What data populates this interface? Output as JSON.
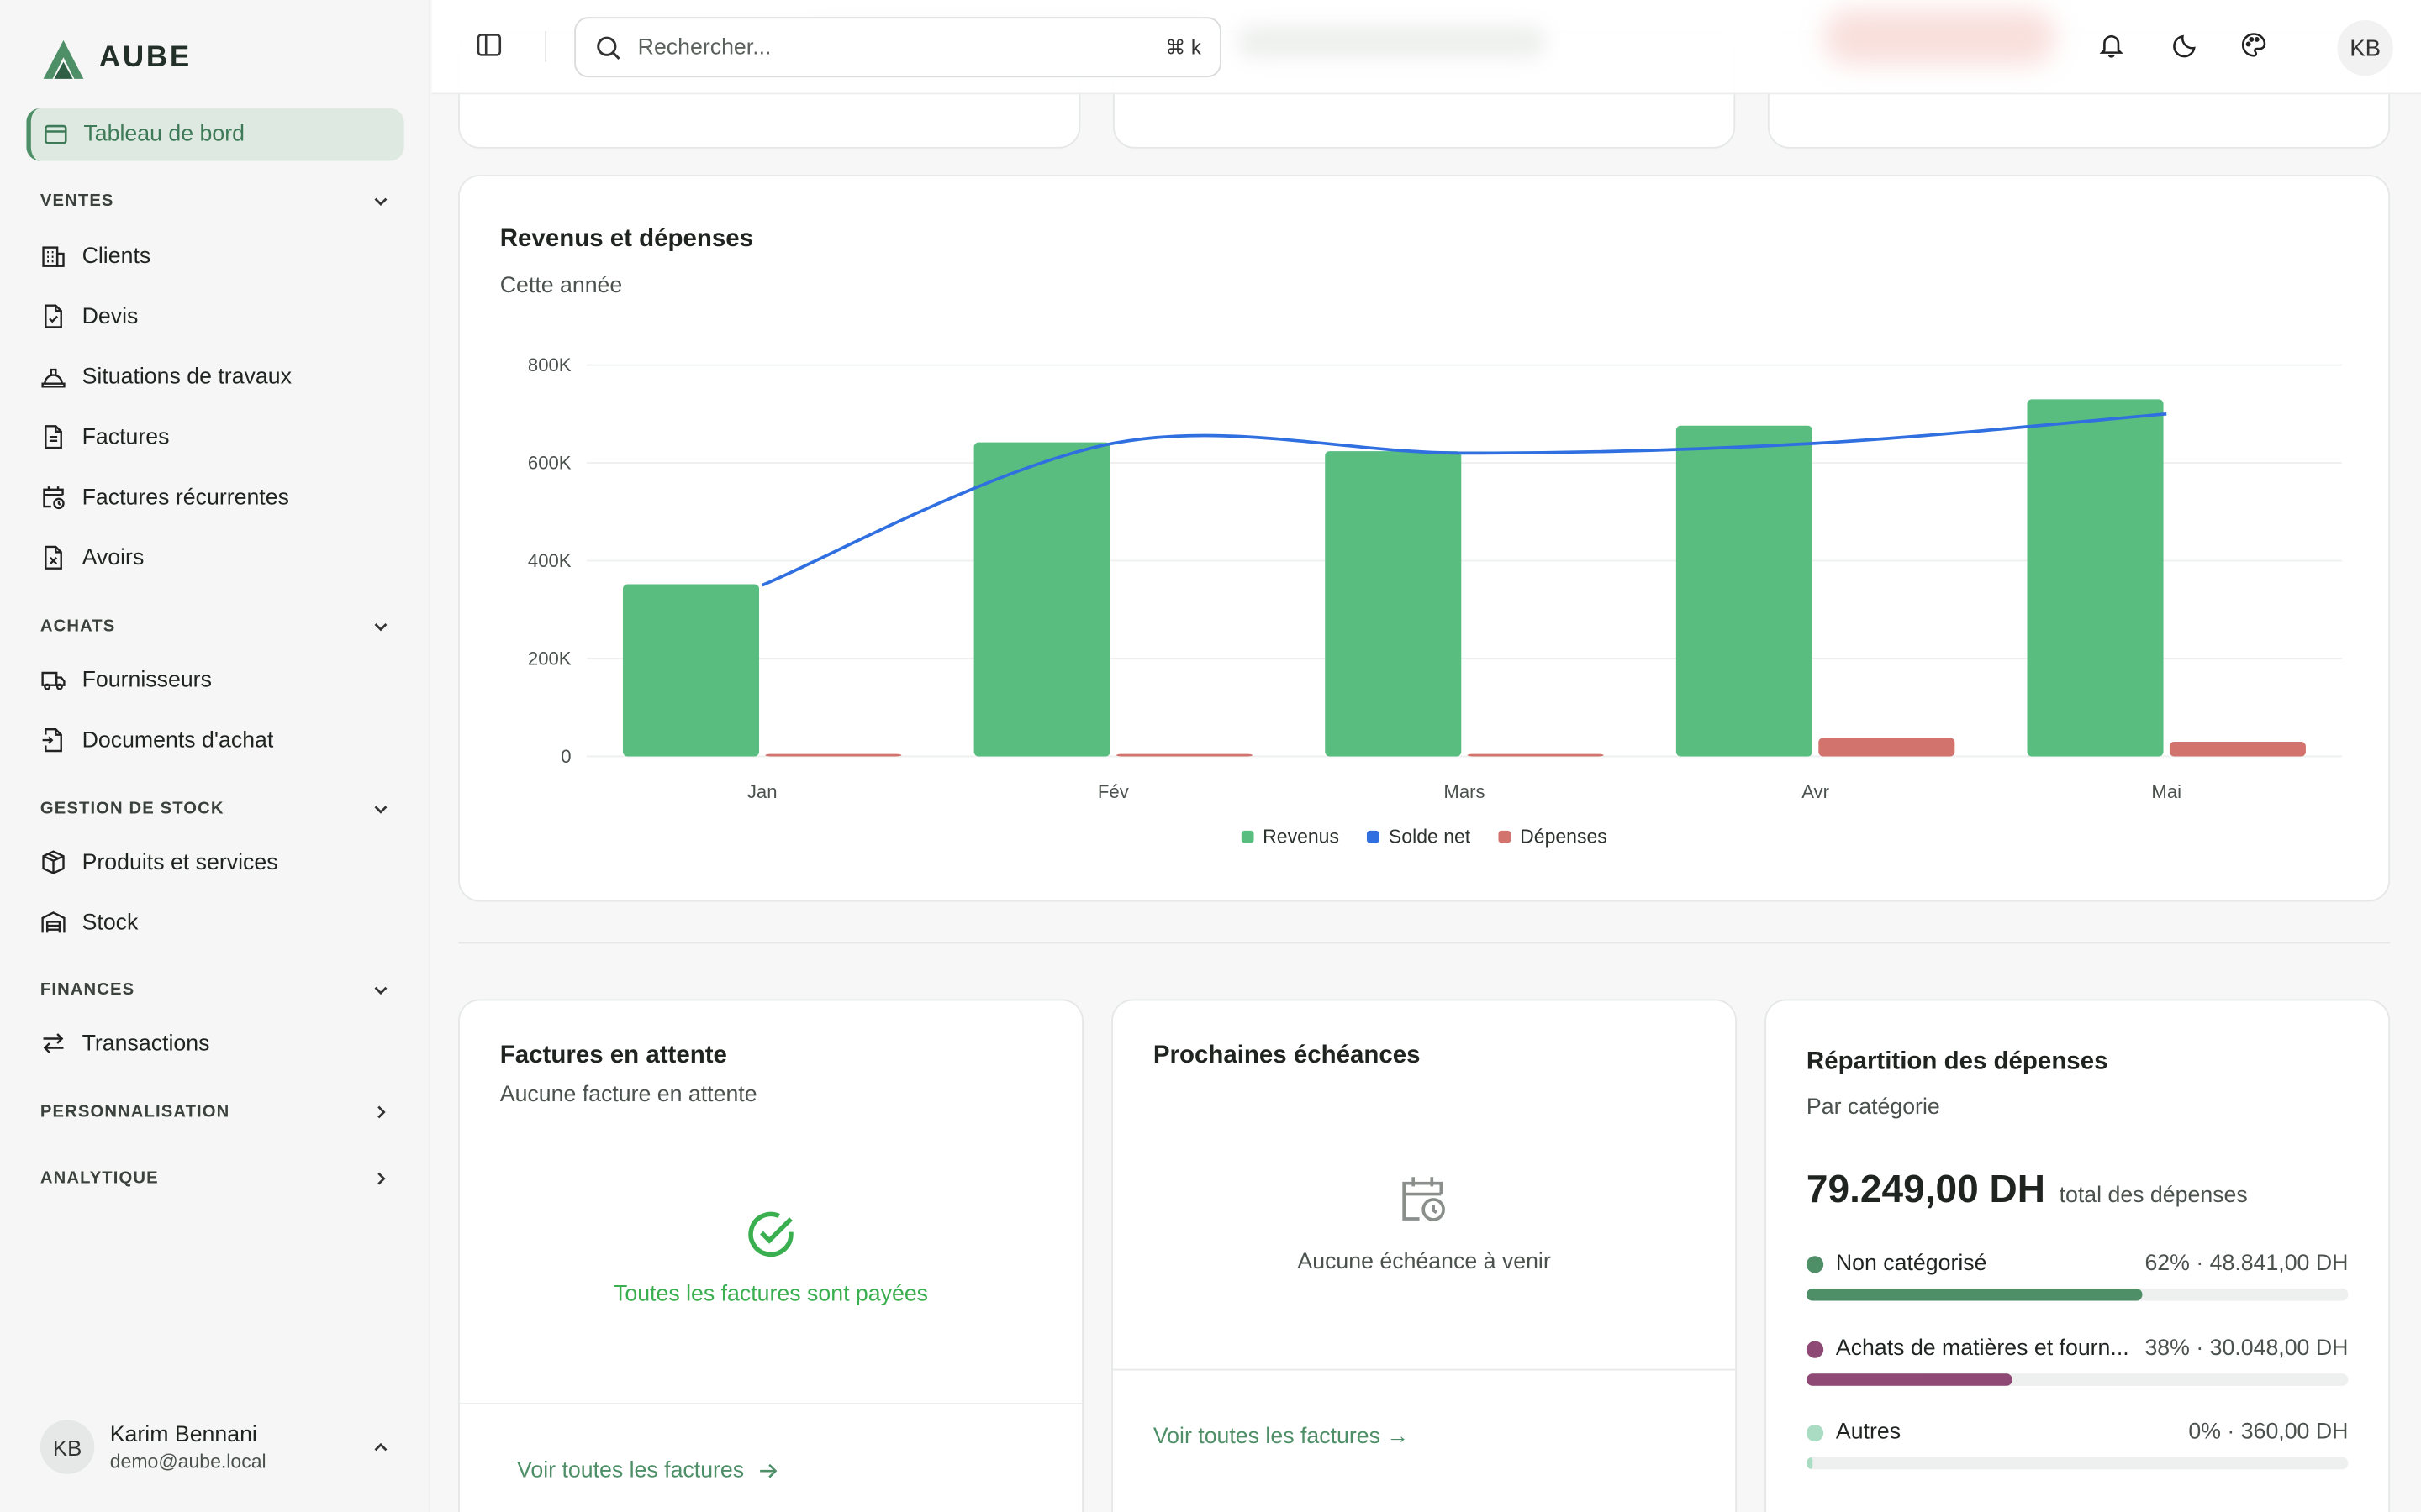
{
  "app": {
    "logo_text": "AUBE"
  },
  "sidebar": {
    "active_item": {
      "label": "Tableau de bord"
    },
    "sections": {
      "ventes": "VENTES",
      "achats": "ACHATS",
      "stock": "GESTION DE STOCK",
      "finances": "FINANCES",
      "perso": "PERSONNALISATION",
      "analytique": "ANALYTIQUE"
    },
    "items": {
      "clients": "Clients",
      "devis": "Devis",
      "situations": "Situations de travaux",
      "factures": "Factures",
      "factures_rec": "Factures récurrentes",
      "avoirs": "Avoirs",
      "fournisseurs": "Fournisseurs",
      "docs_achat": "Documents d'achat",
      "produits": "Produits et services",
      "stock": "Stock",
      "transactions": "Transactions"
    },
    "user": {
      "initials": "KB",
      "name": "Karim Bennani",
      "email": "demo@aube.local"
    }
  },
  "topbar": {
    "search_placeholder": "Rechercher...",
    "shortcut": "⌘ k",
    "avatar_initials": "KB"
  },
  "revenue_card": {
    "title": "Revenus et dépenses",
    "subtitle": "Cette année"
  },
  "chart_data": {
    "type": "bar",
    "categories": [
      "Jan",
      "Fév",
      "Mars",
      "Avr",
      "Mai"
    ],
    "ylim": [
      0,
      800000
    ],
    "yticks": [
      0,
      200000,
      400000,
      600000,
      800000
    ],
    "ytick_labels": [
      "0",
      "200K",
      "400K",
      "600K",
      "800K"
    ],
    "grid": true,
    "legend_placement": "bottom-center",
    "series": [
      {
        "name": "Revenus",
        "type": "bar",
        "color": "#58bd7f",
        "values": [
          352000,
          642000,
          624000,
          676000,
          730000
        ]
      },
      {
        "name": "Solde net",
        "type": "line",
        "color": "#2f6fe0",
        "values": [
          350000,
          640000,
          620000,
          640000,
          700000
        ]
      },
      {
        "name": "Dépenses",
        "type": "bar",
        "color": "#d2736d",
        "values": [
          2000,
          2000,
          4000,
          38000,
          30000
        ]
      }
    ]
  },
  "pending_card": {
    "title": "Factures en attente",
    "subtitle": "Aucune facture en attente",
    "empty_text": "Toutes les factures sont payées",
    "link": "Voir toutes les factures"
  },
  "deadlines_card": {
    "title": "Prochaines échéances",
    "empty_text": "Aucune échéance à venir",
    "link": "Voir toutes les factures →"
  },
  "breakdown_card": {
    "title": "Répartition des dépenses",
    "subtitle": "Par catégorie",
    "total": "79.249,00 DH",
    "total_label": "total des dépenses",
    "rows": [
      {
        "label": "Non catégorisé",
        "value": "62% · 48.841,00 DH",
        "percent": 62,
        "color": "#4e8f68"
      },
      {
        "label": "Achats de matières et fourn...",
        "value": "38% · 30.048,00 DH",
        "percent": 38,
        "color": "#8e4a74"
      },
      {
        "label": "Autres",
        "value": "0% · 360,00 DH",
        "percent": 0,
        "color": "#a9dcc3"
      }
    ]
  }
}
